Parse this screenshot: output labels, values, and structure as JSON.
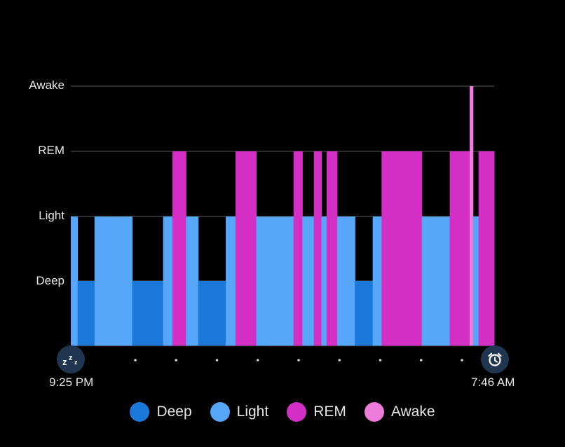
{
  "chart_data": {
    "type": "area",
    "levels": [
      "Awake",
      "REM",
      "Light",
      "Deep"
    ],
    "start_time": "9:25 PM",
    "end_time": "7:46 AM",
    "colors": {
      "Deep": "#1a78d8",
      "Light": "#56a6fa",
      "REM": "#d42fc4",
      "Awake": "#ed7bd9"
    },
    "segments": [
      {
        "stage": "Light",
        "start": 0.0,
        "end": 0.016
      },
      {
        "stage": "Deep",
        "start": 0.016,
        "end": 0.056
      },
      {
        "stage": "Light",
        "start": 0.056,
        "end": 0.145
      },
      {
        "stage": "Deep",
        "start": 0.145,
        "end": 0.218
      },
      {
        "stage": "Light",
        "start": 0.218,
        "end": 0.24
      },
      {
        "stage": "REM",
        "start": 0.24,
        "end": 0.272
      },
      {
        "stage": "Light",
        "start": 0.272,
        "end": 0.301
      },
      {
        "stage": "Deep",
        "start": 0.301,
        "end": 0.366
      },
      {
        "stage": "Light",
        "start": 0.366,
        "end": 0.389
      },
      {
        "stage": "REM",
        "start": 0.389,
        "end": 0.438
      },
      {
        "stage": "Light",
        "start": 0.438,
        "end": 0.526
      },
      {
        "stage": "REM",
        "start": 0.526,
        "end": 0.547
      },
      {
        "stage": "Light",
        "start": 0.547,
        "end": 0.574
      },
      {
        "stage": "REM",
        "start": 0.574,
        "end": 0.592
      },
      {
        "stage": "Light",
        "start": 0.592,
        "end": 0.604
      },
      {
        "stage": "REM",
        "start": 0.604,
        "end": 0.629
      },
      {
        "stage": "Light",
        "start": 0.629,
        "end": 0.671
      },
      {
        "stage": "Deep",
        "start": 0.671,
        "end": 0.713
      },
      {
        "stage": "Light",
        "start": 0.713,
        "end": 0.734
      },
      {
        "stage": "REM",
        "start": 0.734,
        "end": 0.829
      },
      {
        "stage": "Light",
        "start": 0.829,
        "end": 0.895
      },
      {
        "stage": "REM",
        "start": 0.895,
        "end": 0.942
      },
      {
        "stage": "Awake",
        "start": 0.942,
        "end": 0.95
      },
      {
        "stage": "Light",
        "start": 0.95,
        "end": 0.963
      },
      {
        "stage": "REM",
        "start": 0.963,
        "end": 1.0
      }
    ],
    "tick_dots": 9,
    "grid": true,
    "legend": [
      "Deep",
      "Light",
      "REM",
      "Awake"
    ],
    "legend_position": "bottom"
  }
}
